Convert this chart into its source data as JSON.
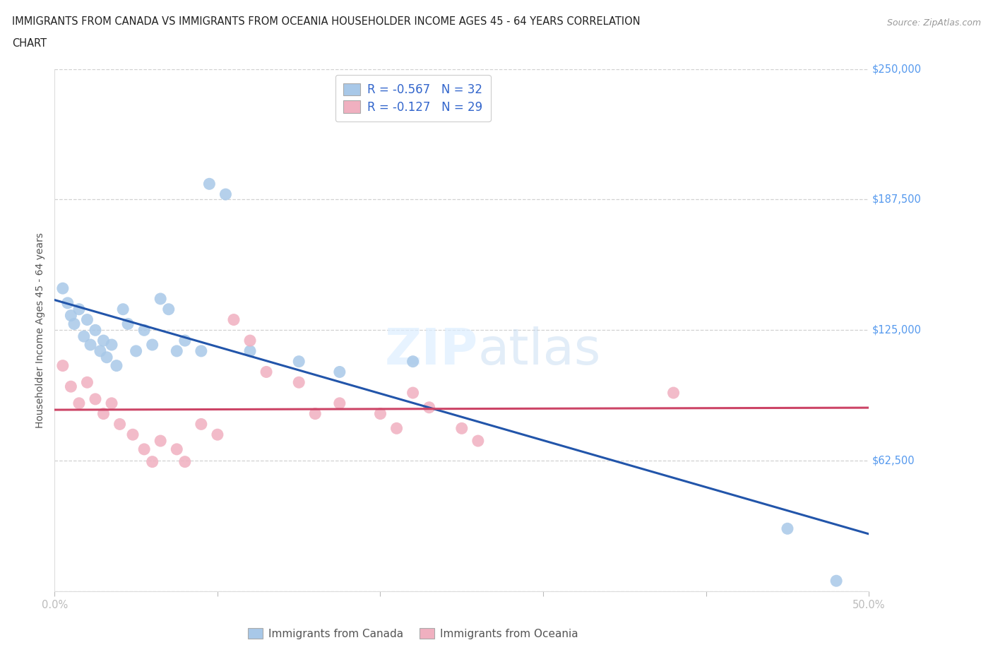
{
  "title_line1": "IMMIGRANTS FROM CANADA VS IMMIGRANTS FROM OCEANIA HOUSEHOLDER INCOME AGES 45 - 64 YEARS CORRELATION",
  "title_line2": "CHART",
  "source": "Source: ZipAtlas.com",
  "ylabel": "Householder Income Ages 45 - 64 years",
  "xlim": [
    0.0,
    0.5
  ],
  "ylim": [
    0,
    250000
  ],
  "xticks": [
    0.0,
    0.1,
    0.2,
    0.3,
    0.4,
    0.5
  ],
  "xticklabels": [
    "0.0%",
    "",
    "",
    "",
    "",
    "50.0%"
  ],
  "yticks": [
    0,
    62500,
    125000,
    187500,
    250000
  ],
  "yticklabels_right": [
    "",
    "$62,500",
    "$125,000",
    "$187,500",
    "$250,000"
  ],
  "background_color": "#ffffff",
  "grid_color": "#cccccc",
  "canada_color": "#a8c8e8",
  "oceania_color": "#f0b0c0",
  "canada_line_color": "#2255aa",
  "oceania_line_color": "#cc4466",
  "watermark_zip": "ZIP",
  "watermark_atlas": "atlas",
  "legend_text_canada": "R = -0.567   N = 32",
  "legend_text_oceania": "R = -0.127   N = 29",
  "legend_label_canada": "Immigrants from Canada",
  "legend_label_oceania": "Immigrants from Oceania",
  "canada_x": [
    0.005,
    0.008,
    0.01,
    0.012,
    0.015,
    0.018,
    0.02,
    0.022,
    0.025,
    0.028,
    0.03,
    0.032,
    0.035,
    0.038,
    0.042,
    0.045,
    0.05,
    0.055,
    0.06,
    0.065,
    0.07,
    0.075,
    0.08,
    0.09,
    0.095,
    0.105,
    0.12,
    0.15,
    0.175,
    0.22,
    0.45,
    0.48
  ],
  "canada_y": [
    145000,
    138000,
    132000,
    128000,
    135000,
    122000,
    130000,
    118000,
    125000,
    115000,
    120000,
    112000,
    118000,
    108000,
    135000,
    128000,
    115000,
    125000,
    118000,
    140000,
    135000,
    115000,
    120000,
    115000,
    195000,
    190000,
    115000,
    110000,
    105000,
    110000,
    30000,
    5000
  ],
  "oceania_x": [
    0.005,
    0.01,
    0.015,
    0.02,
    0.025,
    0.03,
    0.035,
    0.04,
    0.048,
    0.055,
    0.06,
    0.065,
    0.075,
    0.08,
    0.09,
    0.1,
    0.11,
    0.12,
    0.13,
    0.15,
    0.16,
    0.175,
    0.2,
    0.21,
    0.22,
    0.23,
    0.25,
    0.26,
    0.38
  ],
  "oceania_y": [
    108000,
    98000,
    90000,
    100000,
    92000,
    85000,
    90000,
    80000,
    75000,
    68000,
    62000,
    72000,
    68000,
    62000,
    80000,
    75000,
    130000,
    120000,
    105000,
    100000,
    85000,
    90000,
    85000,
    78000,
    95000,
    88000,
    78000,
    72000,
    95000
  ]
}
